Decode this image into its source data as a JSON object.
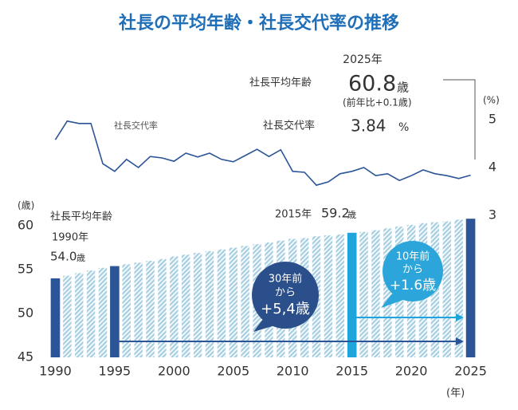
{
  "chart_data": {
    "type": "bar",
    "title": "社長の平均年齢・社長交代率の推移",
    "x": [
      1990,
      1991,
      1992,
      1993,
      1994,
      1995,
      1996,
      1997,
      1998,
      1999,
      2000,
      2001,
      2002,
      2003,
      2004,
      2005,
      2006,
      2007,
      2008,
      2009,
      2010,
      2011,
      2012,
      2013,
      2014,
      2015,
      2016,
      2017,
      2018,
      2019,
      2020,
      2021,
      2022,
      2023,
      2024,
      2025
    ],
    "xlim": [
      1989.5,
      2025.5
    ],
    "xticks": [
      1990,
      1995,
      2000,
      2005,
      2010,
      2015,
      2020,
      2025
    ],
    "x_unit": "(年)",
    "ylim": [
      45,
      61
    ],
    "yticks": [
      45,
      50,
      55,
      60
    ],
    "y_unit": "(歳)",
    "y2lim": [
      3,
      5
    ],
    "y2ticks": [
      3,
      4,
      5
    ],
    "y2_unit": "(%)",
    "series": [
      {
        "name": "社長平均年齢",
        "type": "bar",
        "color": "#a9d0e2",
        "values": [
          54.0,
          54.3,
          54.6,
          54.9,
          55.2,
          55.4,
          55.6,
          55.8,
          56.0,
          56.2,
          56.5,
          56.7,
          56.9,
          57.1,
          57.3,
          57.5,
          57.7,
          57.9,
          58.1,
          58.3,
          58.5,
          58.6,
          58.8,
          58.9,
          59.0,
          59.2,
          59.3,
          59.5,
          59.7,
          59.9,
          60.1,
          60.3,
          60.4,
          60.5,
          60.7,
          60.8
        ],
        "value_labels": [
          "54.0",
          null,
          null,
          null,
          null,
          null,
          null,
          null,
          null,
          null,
          null,
          null,
          null,
          null,
          null,
          null,
          null,
          null,
          null,
          null,
          null,
          null,
          null,
          null,
          null,
          "59.2",
          null,
          null,
          null,
          null,
          null,
          null,
          null,
          null,
          null,
          "60.8"
        ]
      },
      {
        "name": "社長交代率",
        "type": "line",
        "axis": "y2",
        "color": "#2b5597",
        "values": [
          4.58,
          4.97,
          4.92,
          4.92,
          4.08,
          3.92,
          4.17,
          4.0,
          4.23,
          4.2,
          4.13,
          4.3,
          4.22,
          4.3,
          4.17,
          4.12,
          4.25,
          4.38,
          4.23,
          4.37,
          3.92,
          3.9,
          3.63,
          3.7,
          3.87,
          3.92,
          4.0,
          3.83,
          3.87,
          3.73,
          3.83,
          3.95,
          3.87,
          3.83,
          3.77,
          3.84
        ]
      }
    ],
    "highlights": [
      {
        "x": 1990,
        "color": "#2b5597"
      },
      {
        "x": 1995,
        "color": "#2b5597"
      },
      {
        "x": 2015,
        "color": "#1ea6dc"
      },
      {
        "x": 2025,
        "color": "#2b5597"
      }
    ],
    "annotations": {
      "latest_year": "2025年",
      "latest_age_unit": "歳",
      "latest_age_change": "(前年比+0.1歳)",
      "latest_rate": "3.84",
      "latest_rate_unit": "%",
      "first_year": "1990年",
      "first_age_unit": "歳",
      "mid_year": "2015年",
      "mid_age_unit": "歳",
      "callout_30": [
        "30年前",
        "から",
        "+5,4歳"
      ],
      "callout_10": [
        "10年前",
        "から",
        "+1.6歳"
      ]
    }
  }
}
